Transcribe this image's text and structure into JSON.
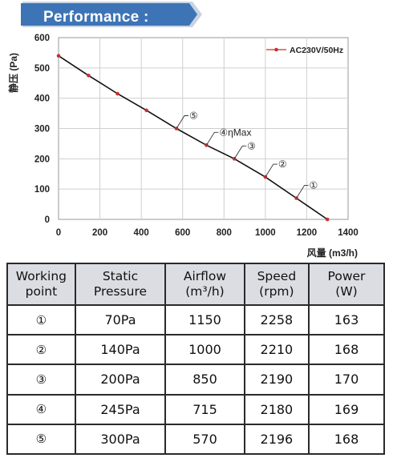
{
  "banner": {
    "title": "Performance :",
    "color": "#3d74b5"
  },
  "chart_data": {
    "type": "line",
    "ylabel": "静压 (Pa)",
    "xlabel": "风量 (m3/h)",
    "xlim": [
      0,
      1400
    ],
    "ylim": [
      0,
      600
    ],
    "xticks": [
      0,
      200,
      400,
      600,
      800,
      1000,
      1200,
      1400
    ],
    "yticks": [
      0,
      100,
      200,
      300,
      400,
      500,
      600
    ],
    "grid": true,
    "legend_position": "top-right",
    "series": [
      {
        "name": "AC230V/50Hz",
        "color": "#c83030",
        "x": [
          0,
          145,
          285,
          425,
          570,
          715,
          850,
          1000,
          1150,
          1300
        ],
        "y": [
          540,
          475,
          415,
          360,
          300,
          245,
          200,
          140,
          70,
          0
        ]
      }
    ],
    "annotations": [
      {
        "label": "①",
        "x": 1150,
        "y": 70
      },
      {
        "label": "②",
        "x": 1000,
        "y": 140
      },
      {
        "label": "③",
        "x": 850,
        "y": 200
      },
      {
        "label": "④ηMax",
        "x": 715,
        "y": 245
      },
      {
        "label": "⑤",
        "x": 570,
        "y": 300
      }
    ]
  },
  "table": {
    "headers": [
      [
        "Working",
        "point"
      ],
      [
        "Static",
        "Pressure"
      ],
      [
        "Airflow",
        "(m³/h)"
      ],
      [
        "Speed",
        "(rpm)"
      ],
      [
        "Power",
        "(W)"
      ]
    ],
    "rows": [
      {
        "point": "①",
        "pressure": "70Pa",
        "airflow": "1150",
        "speed": "2258",
        "power": "163"
      },
      {
        "point": "②",
        "pressure": "140Pa",
        "airflow": "1000",
        "speed": "2210",
        "power": "168"
      },
      {
        "point": "③",
        "pressure": "200Pa",
        "airflow": "850",
        "speed": "2190",
        "power": "170"
      },
      {
        "point": "④",
        "pressure": "245Pa",
        "airflow": "715",
        "speed": "2180",
        "power": "169"
      },
      {
        "point": "⑤",
        "pressure": "300Pa",
        "airflow": "570",
        "speed": "2196",
        "power": "168"
      }
    ]
  }
}
